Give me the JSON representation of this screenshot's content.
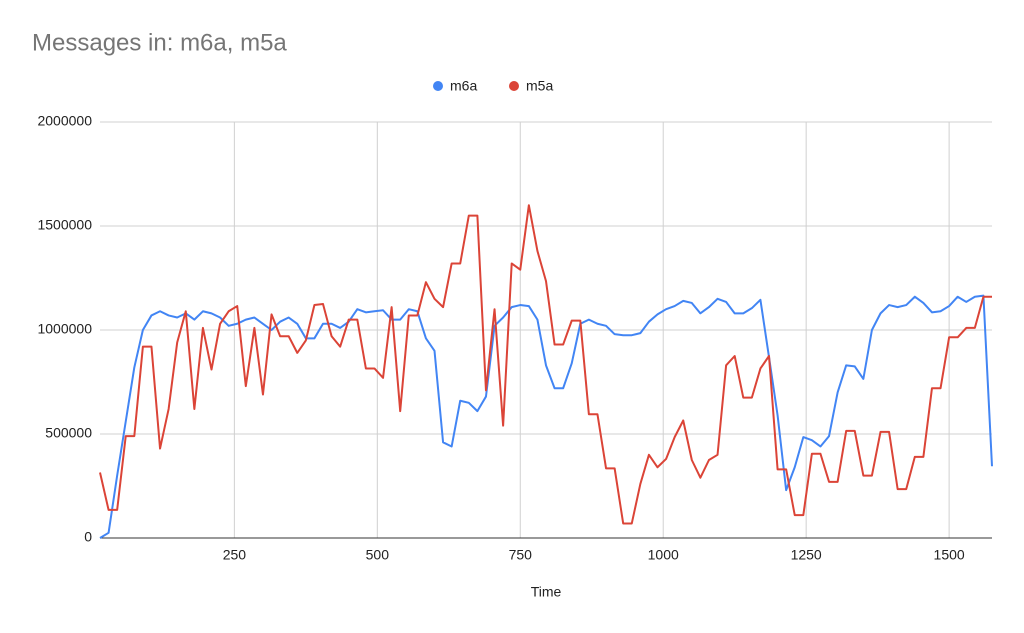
{
  "chart_data": {
    "type": "line",
    "title": "Messages in: m6a, m5a",
    "xlabel": "Time",
    "x": [
      15,
      30,
      45,
      60,
      75,
      90,
      105,
      120,
      135,
      150,
      165,
      180,
      195,
      210,
      225,
      240,
      255,
      270,
      285,
      300,
      315,
      330,
      345,
      360,
      375,
      390,
      405,
      420,
      435,
      450,
      465,
      480,
      495,
      510,
      525,
      540,
      555,
      570,
      585,
      600,
      615,
      630,
      645,
      660,
      675,
      690,
      705,
      720,
      735,
      750,
      765,
      780,
      795,
      810,
      825,
      840,
      855,
      870,
      885,
      900,
      915,
      930,
      945,
      960,
      975,
      990,
      1005,
      1020,
      1035,
      1050,
      1065,
      1080,
      1095,
      1110,
      1125,
      1140,
      1155,
      1170,
      1185,
      1200,
      1215,
      1230,
      1245,
      1260,
      1275,
      1290,
      1305,
      1320,
      1335,
      1350,
      1365,
      1380,
      1395,
      1410,
      1425,
      1440,
      1455,
      1470,
      1485,
      1500,
      1515,
      1530,
      1545,
      1560,
      1575
    ],
    "series": [
      {
        "name": "m6a",
        "color": "#4285f4",
        "values": [
          0,
          25000,
          300000,
          560000,
          820000,
          1000000,
          1070000,
          1090000,
          1070000,
          1060000,
          1080000,
          1050000,
          1090000,
          1080000,
          1060000,
          1020000,
          1030000,
          1050000,
          1060000,
          1030000,
          1000000,
          1040000,
          1060000,
          1030000,
          960000,
          960000,
          1030000,
          1030000,
          1010000,
          1040000,
          1100000,
          1085000,
          1090000,
          1095000,
          1050000,
          1050000,
          1100000,
          1090000,
          960000,
          900000,
          460000,
          440000,
          660000,
          650000,
          610000,
          680000,
          1020000,
          1060000,
          1110000,
          1120000,
          1115000,
          1050000,
          830000,
          720000,
          720000,
          840000,
          1030000,
          1050000,
          1030000,
          1020000,
          980000,
          975000,
          975000,
          985000,
          1040000,
          1075000,
          1100000,
          1115000,
          1140000,
          1130000,
          1080000,
          1110000,
          1150000,
          1135000,
          1080000,
          1080000,
          1105000,
          1145000,
          870000,
          590000,
          230000,
          340000,
          485000,
          470000,
          440000,
          490000,
          700000,
          830000,
          825000,
          765000,
          1000000,
          1080000,
          1120000,
          1110000,
          1120000,
          1160000,
          1130000,
          1085000,
          1090000,
          1115000,
          1160000,
          1135000,
          1160000,
          1165000,
          345000
        ]
      },
      {
        "name": "m5a",
        "color": "#db4437",
        "values": [
          315000,
          135000,
          135000,
          490000,
          490000,
          920000,
          920000,
          430000,
          620000,
          940000,
          1090000,
          620000,
          1010000,
          810000,
          1030000,
          1090000,
          1115000,
          730000,
          1010000,
          690000,
          1075000,
          970000,
          970000,
          890000,
          950000,
          1120000,
          1125000,
          970000,
          920000,
          1050000,
          1050000,
          815000,
          815000,
          770000,
          1110000,
          610000,
          1070000,
          1070000,
          1230000,
          1150000,
          1110000,
          1320000,
          1320000,
          1550000,
          1550000,
          710000,
          1100000,
          540000,
          1320000,
          1290000,
          1600000,
          1380000,
          1235000,
          930000,
          930000,
          1045000,
          1045000,
          595000,
          595000,
          335000,
          335000,
          70000,
          70000,
          260000,
          400000,
          340000,
          380000,
          485000,
          565000,
          375000,
          290000,
          375000,
          400000,
          830000,
          875000,
          675000,
          675000,
          815000,
          875000,
          330000,
          330000,
          110000,
          110000,
          405000,
          405000,
          270000,
          270000,
          515000,
          515000,
          300000,
          300000,
          510000,
          510000,
          235000,
          235000,
          390000,
          390000,
          720000,
          720000,
          965000,
          965000,
          1010000,
          1010000,
          1160000,
          1160000
        ]
      }
    ],
    "xlim": [
      15,
      1575
    ],
    "xticks": [
      250,
      500,
      750,
      1000,
      1250,
      1500
    ],
    "ylim": [
      0,
      2000000
    ],
    "yticks": [
      0,
      500000,
      1000000,
      1500000,
      2000000
    ],
    "grid": true,
    "legend": "top"
  }
}
